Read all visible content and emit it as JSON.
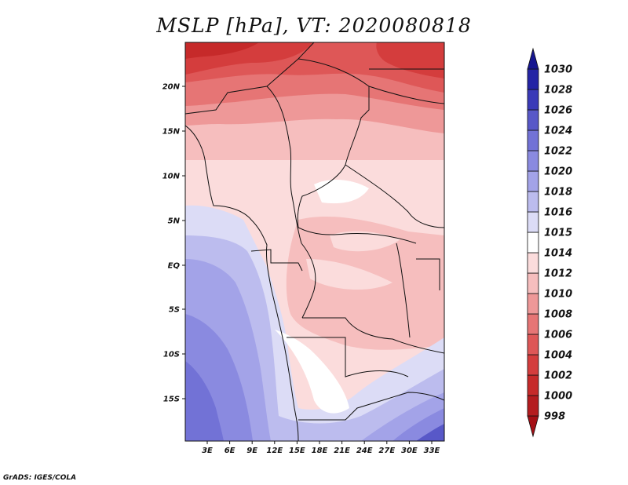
{
  "title": "MSLP [hPa], VT: 2020080818",
  "credit": "GrADS: IGES/COLA",
  "lat_labels": [
    "20N",
    "15N",
    "10N",
    "5N",
    "EQ",
    "5S",
    "10S",
    "15S"
  ],
  "lon_labels": [
    "3E",
    "6E",
    "9E",
    "12E",
    "15E",
    "18E",
    "21E",
    "24E",
    "27E",
    "30E",
    "33E"
  ],
  "colorbar": {
    "levels": [
      "998",
      "1000",
      "1002",
      "1004",
      "1006",
      "1008",
      "1010",
      "1012",
      "1014",
      "1015",
      "1016",
      "1018",
      "1020",
      "1022",
      "1024",
      "1026",
      "1028",
      "1030"
    ],
    "colors": [
      "#a50f15",
      "#b41c1f",
      "#c62a2a",
      "#d43d3d",
      "#de5757",
      "#e67575",
      "#ee9898",
      "#f6bebe",
      "#fbdcdc",
      "#ffffff",
      "#dcdcf6",
      "#bcbcee",
      "#a3a3e8",
      "#8a8ae0",
      "#7272d6",
      "#5858c8",
      "#3a3ab8",
      "#2424a5",
      "#161690"
    ]
  }
}
